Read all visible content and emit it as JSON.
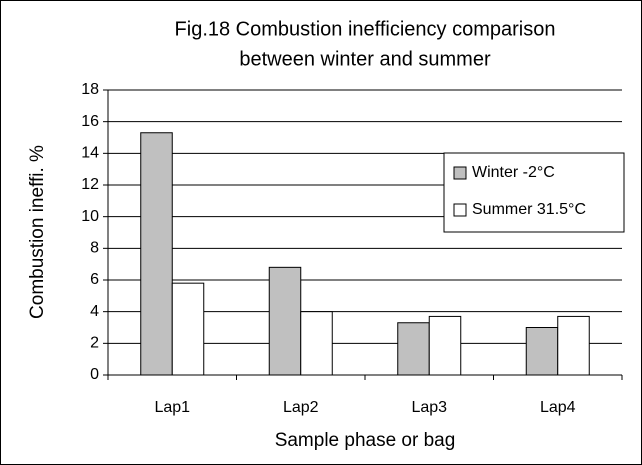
{
  "chart_data": {
    "type": "bar",
    "title": [
      "Fig.18 Combustion inefficiency comparison",
      "between winter and summer"
    ],
    "x_label": "Sample phase or bag",
    "y_label": "Combustion ineffi.  %",
    "categories": [
      "Lap1",
      "Lap2",
      "Lap3",
      "Lap4"
    ],
    "series": [
      {
        "name": "Winter -2°C",
        "color": "#c0c0c0",
        "values": [
          15.3,
          6.8,
          3.3,
          3.0
        ]
      },
      {
        "name": "Summer 31.5°C",
        "color": "#ffffff",
        "values": [
          5.8,
          4.0,
          3.7,
          3.7
        ]
      }
    ],
    "ylim": [
      0,
      18
    ],
    "yticks": [
      0,
      2,
      4,
      6,
      8,
      10,
      12,
      14,
      16,
      18
    ],
    "grid": true,
    "legend": "upper right"
  }
}
